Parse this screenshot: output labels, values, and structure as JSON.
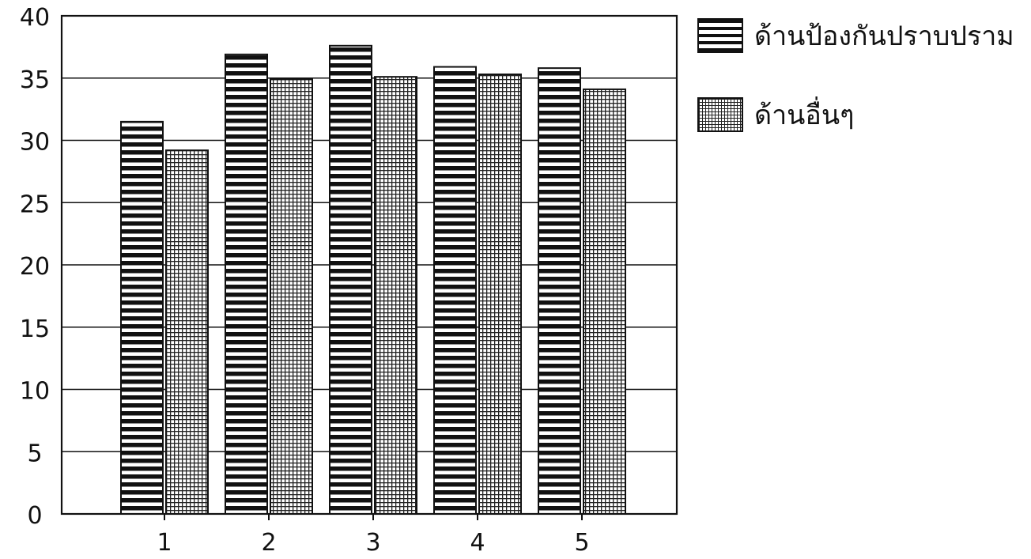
{
  "chart_data": {
    "type": "bar",
    "categories": [
      "1",
      "2",
      "3",
      "4",
      "5"
    ],
    "series": [
      {
        "name": "ด้านป้องกันปราบปราม",
        "values": [
          31.5,
          36.9,
          37.6,
          35.9,
          35.8
        ],
        "pattern": "horizontal-stripes"
      },
      {
        "name": "ด้านอื่นๆ",
        "values": [
          29.2,
          34.9,
          35.1,
          35.3,
          34.1
        ],
        "pattern": "crosshatch-grid"
      }
    ],
    "yticks": [
      "0",
      "5",
      "10",
      "15",
      "20",
      "25",
      "30",
      "35",
      "40"
    ],
    "ylim": [
      0,
      40
    ],
    "grid": true,
    "legend_position": "top-right",
    "colors": {
      "ink": "#111111",
      "background": "#ffffff"
    }
  },
  "legend": {
    "items": [
      {
        "label": "ด้านป้องกันปราบปราม"
      },
      {
        "label": "ด้านอื่นๆ"
      }
    ]
  }
}
